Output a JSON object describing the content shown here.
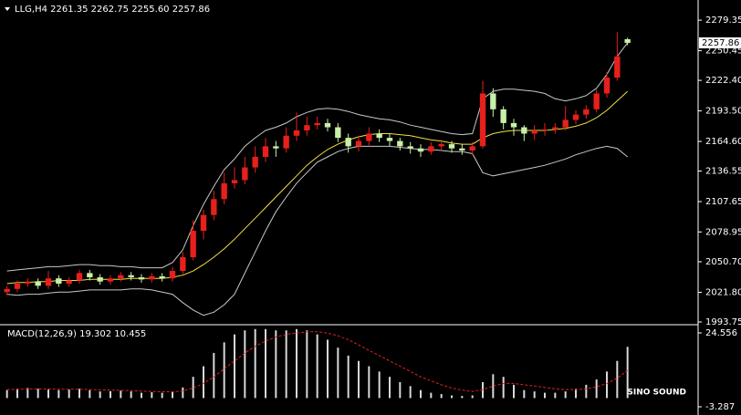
{
  "chart_data": [
    {
      "type": "candlestick",
      "title": "LLG,H4  2261.35 2262.75 2255.60 2257.86",
      "open": [
        2022,
        2025,
        2030,
        2032,
        2028,
        2035,
        2030,
        2033,
        2040,
        2036,
        2032,
        2035,
        2038,
        2036,
        2034,
        2037,
        2035,
        2042,
        2055,
        2080,
        2095,
        2110,
        2125,
        2128,
        2140,
        2150,
        2160,
        2158,
        2170,
        2175,
        2180,
        2182,
        2178,
        2168,
        2160,
        2165,
        2172,
        2168,
        2165,
        2160,
        2158,
        2155,
        2160,
        2162,
        2158,
        2156,
        2160,
        2210,
        2195,
        2182,
        2178,
        2172,
        2175,
        2176,
        2178,
        2185,
        2190,
        2195,
        2210,
        2225,
        2261.35
      ],
      "high": [
        2028,
        2033,
        2035,
        2035,
        2042,
        2038,
        2036,
        2043,
        2043,
        2039,
        2038,
        2041,
        2041,
        2039,
        2040,
        2040,
        2046,
        2060,
        2090,
        2100,
        2118,
        2135,
        2140,
        2150,
        2160,
        2168,
        2165,
        2178,
        2192,
        2188,
        2188,
        2186,
        2182,
        2172,
        2170,
        2178,
        2176,
        2172,
        2168,
        2164,
        2162,
        2164,
        2166,
        2165,
        2162,
        2164,
        2222,
        2215,
        2198,
        2186,
        2180,
        2180,
        2182,
        2182,
        2198,
        2194,
        2199,
        2214,
        2230,
        2268,
        2262.75
      ],
      "low": [
        2019,
        2022,
        2027,
        2025,
        2025,
        2027,
        2027,
        2030,
        2033,
        2029,
        2029,
        2032,
        2033,
        2031,
        2031,
        2032,
        2032,
        2039,
        2052,
        2072,
        2090,
        2105,
        2120,
        2124,
        2135,
        2145,
        2150,
        2154,
        2165,
        2170,
        2176,
        2174,
        2164,
        2154,
        2155,
        2161,
        2164,
        2160,
        2156,
        2153,
        2150,
        2152,
        2156,
        2154,
        2152,
        2152,
        2158,
        2188,
        2176,
        2170,
        2165,
        2166,
        2170,
        2172,
        2175,
        2181,
        2186,
        2192,
        2206,
        2222,
        2255.6
      ],
      "close": [
        2025,
        2030,
        2032,
        2028,
        2035,
        2030,
        2033,
        2040,
        2036,
        2032,
        2035,
        2038,
        2036,
        2034,
        2037,
        2035,
        2042,
        2055,
        2080,
        2095,
        2110,
        2125,
        2128,
        2140,
        2150,
        2160,
        2158,
        2170,
        2175,
        2180,
        2182,
        2178,
        2168,
        2160,
        2165,
        2172,
        2168,
        2165,
        2160,
        2158,
        2155,
        2160,
        2162,
        2158,
        2156,
        2160,
        2210,
        2195,
        2182,
        2178,
        2172,
        2175,
        2176,
        2178,
        2185,
        2190,
        2195,
        2210,
        2225,
        2245,
        2257.86
      ],
      "up_color": "#e8201c",
      "down_color": "#c8f0a8",
      "overlays": [
        {
          "color": "#c8c8c8",
          "values": [
            2042,
            2043,
            2044,
            2045,
            2046,
            2046,
            2047,
            2048,
            2048,
            2047,
            2047,
            2046,
            2046,
            2045,
            2045,
            2045,
            2050,
            2062,
            2085,
            2105,
            2122,
            2138,
            2148,
            2160,
            2168,
            2175,
            2178,
            2182,
            2188,
            2192,
            2195,
            2196,
            2195,
            2193,
            2190,
            2188,
            2186,
            2185,
            2183,
            2180,
            2178,
            2176,
            2174,
            2172,
            2171,
            2172,
            2205,
            2212,
            2214,
            2214,
            2213,
            2212,
            2210,
            2205,
            2203,
            2205,
            2208,
            2215,
            2228,
            2245,
            2258
          ]
        },
        {
          "color": "#f0e040",
          "values": [
            2030,
            2031,
            2031,
            2032,
            2032,
            2033,
            2033,
            2033,
            2034,
            2034,
            2034,
            2034,
            2035,
            2035,
            2035,
            2035,
            2036,
            2038,
            2042,
            2048,
            2055,
            2063,
            2072,
            2082,
            2092,
            2102,
            2112,
            2122,
            2132,
            2142,
            2150,
            2157,
            2162,
            2166,
            2169,
            2171,
            2172,
            2172,
            2171,
            2170,
            2168,
            2166,
            2165,
            2163,
            2162,
            2162,
            2168,
            2172,
            2174,
            2175,
            2175,
            2175,
            2175,
            2176,
            2177,
            2179,
            2182,
            2187,
            2194,
            2203,
            2212
          ]
        },
        {
          "color": "#c8c8c8",
          "values": [
            2020,
            2019,
            2020,
            2020,
            2021,
            2022,
            2022,
            2023,
            2024,
            2024,
            2024,
            2024,
            2025,
            2025,
            2024,
            2022,
            2020,
            2012,
            2005,
            2000,
            2003,
            2010,
            2020,
            2040,
            2060,
            2080,
            2098,
            2112,
            2125,
            2135,
            2145,
            2150,
            2155,
            2158,
            2160,
            2160,
            2160,
            2160,
            2159,
            2158,
            2157,
            2157,
            2156,
            2155,
            2155,
            2153,
            2135,
            2132,
            2134,
            2136,
            2138,
            2140,
            2142,
            2145,
            2148,
            2152,
            2155,
            2158,
            2160,
            2158,
            2150
          ]
        }
      ],
      "ylim": [
        1992,
        2295
      ],
      "yticks": [
        2279.35,
        2250.45,
        {
          "value": 2222.4,
          "label": "2222.40"
        },
        {
          "value": 2193.5,
          "label": "2193.50"
        },
        {
          "value": 2164.6,
          "label": "2164.60"
        },
        2136.55,
        2107.65,
        2078.95,
        {
          "value": 2050.7,
          "label": "2050.70"
        },
        {
          "value": 2021.8,
          "label": "2021.80"
        },
        1993.75
      ]
    },
    {
      "type": "macd",
      "title": "MACD(12,26,9) 19.302 10.455",
      "color": "#d8d8d8",
      "signal_color": "#e02020",
      "values": [
        3,
        3.5,
        3.8,
        3.5,
        3.2,
        3,
        3.2,
        3.5,
        3,
        2.5,
        2.6,
        2.8,
        2.5,
        2,
        2.2,
        2,
        2.5,
        4,
        8,
        12,
        17,
        21,
        24,
        25.5,
        26,
        26,
        25.5,
        25.5,
        26,
        25.5,
        24,
        22,
        19,
        16,
        14,
        12,
        10,
        8,
        6,
        4.5,
        3,
        2,
        1.5,
        1,
        0.8,
        1,
        6,
        9,
        8,
        5,
        3,
        2.5,
        2,
        2,
        2.5,
        3.5,
        5,
        7,
        10,
        14,
        19.302
      ],
      "signal": [
        3.2,
        3.3,
        3.4,
        3.4,
        3.4,
        3.3,
        3.3,
        3.3,
        3.2,
        3.1,
        3,
        2.9,
        2.8,
        2.6,
        2.5,
        2.4,
        2.4,
        2.7,
        3.8,
        5.5,
        8,
        11,
        14,
        17,
        19.5,
        21.5,
        23,
        24,
        24.5,
        25,
        25,
        24.5,
        23.5,
        22,
        20,
        18,
        16,
        14,
        12,
        10,
        8,
        6.5,
        5,
        3.8,
        3,
        2.5,
        3.2,
        4.5,
        5.5,
        5.5,
        5,
        4.5,
        4,
        3.5,
        3.2,
        3.2,
        3.5,
        4.2,
        5.5,
        7.5,
        10.455
      ],
      "ylim": [
        -5.35,
        26.96
      ],
      "yticks": [
        24.556,
        -3.287
      ]
    }
  ],
  "watermark": "SINO SOUND"
}
